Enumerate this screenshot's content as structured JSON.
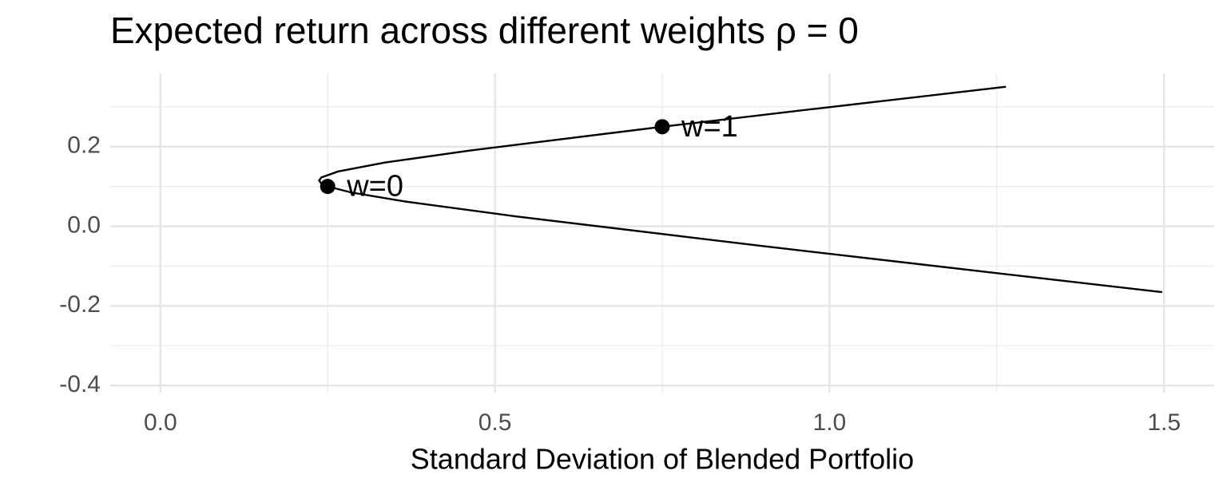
{
  "chart_data": {
    "type": "line",
    "title": "Expected return across different weights ρ = 0",
    "x_label": "Standard Deviation of Blended Portfolio",
    "x": [
      1.4973,
      1.287,
      0.9014,
      0.5303,
      0.3644,
      0.285,
      0.25,
      0.2404,
      0.2372,
      0.2404,
      0.2652,
      0.3354,
      0.461,
      0.75,
      0.9779,
      1.2637
    ],
    "values": [
      -0.1655,
      -0.125,
      -0.05,
      0.025,
      0.0625,
      0.085,
      0.1,
      0.1075,
      0.115,
      0.1225,
      0.1375,
      0.16,
      0.19,
      0.25,
      0.295,
      0.3505
    ],
    "color": "#000000",
    "points": {
      "x": [
        0.25,
        0.75
      ],
      "values": [
        0.1,
        0.25
      ],
      "labels": [
        "w=0",
        "w=1"
      ],
      "color": "#000000"
    },
    "xlim": [
      -0.075,
      1.575
    ],
    "ylim": [
      -0.418,
      0.384
    ],
    "xticks": [
      {
        "value": 0,
        "label": "0.0"
      },
      0.5,
      {
        "value": 1,
        "label": "1.0"
      },
      1.5
    ],
    "yticks": [
      {
        "value": -0.4,
        "label": "-0.4"
      },
      {
        "value": -0.2,
        "label": "-0.2"
      },
      {
        "value": 0,
        "label": "0.0"
      },
      0.2
    ],
    "xminorticks": [
      0.25,
      0.75,
      1.25
    ],
    "yminorticks": [
      -0.3,
      -0.1,
      0.1,
      0.3
    ],
    "grid": true
  }
}
